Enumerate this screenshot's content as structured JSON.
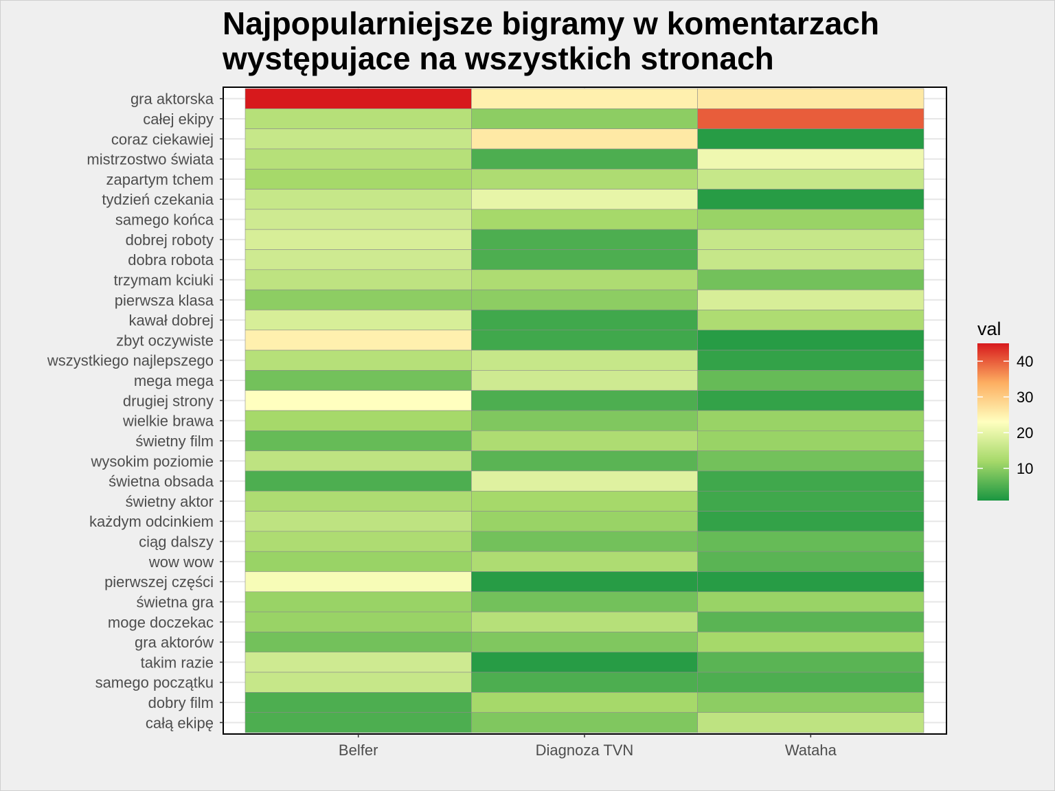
{
  "chart_data": {
    "type": "heatmap",
    "title": "Najpopularniejsze bigramy w komentarzach występujace na wszystkich stronach",
    "title_lines": [
      "Najpopularniejsze bigramy w komentarzach",
      "występujace na wszystkich stronach"
    ],
    "xlabel": "",
    "ylabel": "",
    "x_categories": [
      "Belfer",
      "Diagnoza TVN",
      "Wataha"
    ],
    "y_categories": [
      "gra aktorska",
      "całej ekipy",
      "coraz ciekawiej",
      "mistrzostwo świata",
      "zapartym tchem",
      "tydzień czekania",
      "samego końca",
      "dobrej roboty",
      "dobra robota",
      "trzymam kciuki",
      "pierwsza klasa",
      "kawał dobrej",
      "zbyt oczywiste",
      "wszystkiego najlepszego",
      "mega mega",
      "drugiej strony",
      "wielkie brawa",
      "świetny film",
      "wysokim poziomie",
      "świetna obsada",
      "świetny aktor",
      "każdym odcinkiem",
      "ciąg dalszy",
      "wow wow",
      "pierwszej części",
      "świetna gra",
      "moge doczekac",
      "gra aktorów",
      "takim razie",
      "samego początku",
      "dobry film",
      "całą ekipę"
    ],
    "values": [
      [
        45,
        25,
        26
      ],
      [
        14,
        10,
        40
      ],
      [
        16,
        26,
        2
      ],
      [
        14,
        5,
        21
      ],
      [
        12,
        13,
        16
      ],
      [
        16,
        20,
        2
      ],
      [
        17,
        12,
        11
      ],
      [
        18,
        5,
        16
      ],
      [
        17,
        5,
        16
      ],
      [
        15,
        13,
        8
      ],
      [
        10,
        10,
        18
      ],
      [
        18,
        4,
        13
      ],
      [
        25,
        4,
        2
      ],
      [
        14,
        16,
        3
      ],
      [
        8,
        17,
        7
      ],
      [
        23,
        5,
        3
      ],
      [
        12,
        9,
        11
      ],
      [
        7,
        13,
        11
      ],
      [
        15,
        6,
        8
      ],
      [
        5,
        19,
        4
      ],
      [
        13,
        12,
        4
      ],
      [
        15,
        11,
        3
      ],
      [
        13,
        8,
        7
      ],
      [
        11,
        13,
        6
      ],
      [
        22,
        2,
        2
      ],
      [
        11,
        8,
        11
      ],
      [
        11,
        14,
        6
      ],
      [
        8,
        9,
        12
      ],
      [
        17,
        2,
        6
      ],
      [
        16,
        5,
        5
      ],
      [
        5,
        12,
        10
      ],
      [
        5,
        9,
        15
      ]
    ],
    "legend": {
      "title": "val",
      "ticks": [
        10,
        20,
        30,
        40
      ],
      "range": [
        1,
        45
      ],
      "colors": [
        "#1a9641",
        "#a6d96a",
        "#ffffbf",
        "#fdae61",
        "#d7191c"
      ],
      "placement": "right"
    },
    "grid": true
  }
}
